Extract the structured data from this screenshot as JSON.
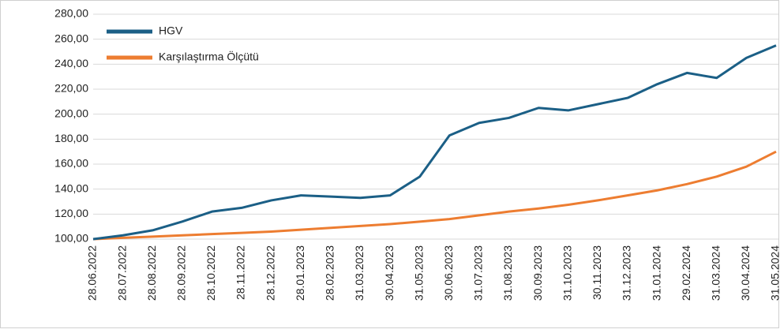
{
  "chart_data": {
    "type": "line",
    "categories": [
      "28.06.2022",
      "28.07.2022",
      "28.08.2022",
      "28.09.2022",
      "28.10.2022",
      "28.11.2022",
      "28.12.2022",
      "28.01.2023",
      "28.02.2023",
      "31.03.2023",
      "30.04.2023",
      "31.05.2023",
      "30.06.2023",
      "31.07.2023",
      "31.08.2023",
      "30.09.2023",
      "31.10.2023",
      "30.11.2023",
      "31.12.2023",
      "31.01.2024",
      "29.02.2024",
      "31.03.2024",
      "30.04.2024",
      "31.05.2024"
    ],
    "series": [
      {
        "name": "HGV",
        "color": "#1b5f86",
        "values": [
          100,
          103,
          107,
          114,
          122,
          125,
          131,
          135,
          134,
          133,
          135,
          150,
          183,
          193,
          197,
          205,
          203,
          208,
          213,
          224,
          233,
          229,
          245,
          255
        ]
      },
      {
        "name": "Karşılaştırma Ölçütü",
        "color": "#ed7d31",
        "values": [
          100,
          101,
          102,
          103,
          104,
          105,
          106,
          107.5,
          109,
          110.5,
          112,
          114,
          116,
          119,
          122,
          124.5,
          127.5,
          131,
          135,
          139,
          144,
          150,
          158,
          170
        ]
      }
    ],
    "ylim": [
      100,
      280
    ],
    "yticks": [
      {
        "value": 100,
        "label": "100,00"
      },
      {
        "value": 120,
        "label": "120,00"
      },
      {
        "value": 140,
        "label": "140,00"
      },
      {
        "value": 160,
        "label": "160,00"
      },
      {
        "value": 180,
        "label": "180,00"
      },
      {
        "value": 200,
        "label": "200,00"
      },
      {
        "value": 220,
        "label": "220,00"
      },
      {
        "value": 240,
        "label": "240,00"
      },
      {
        "value": 260,
        "label": "260,00"
      },
      {
        "value": 280,
        "label": "280,00"
      }
    ],
    "grid": true,
    "legend": "top-left"
  }
}
